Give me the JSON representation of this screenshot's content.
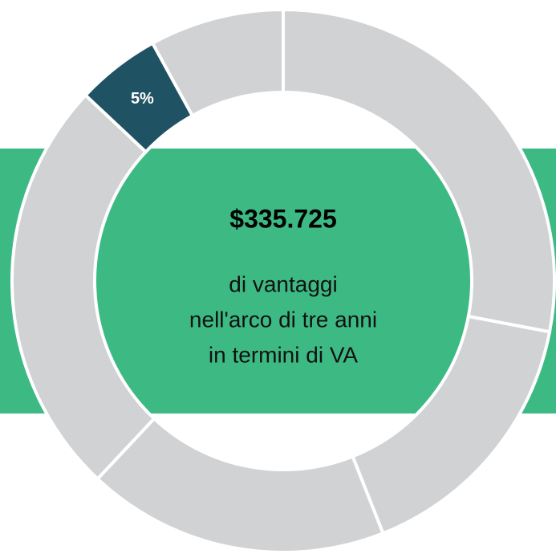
{
  "chart_data": {
    "type": "pie",
    "values": [
      28,
      16,
      18,
      25,
      5,
      8
    ],
    "value_labels": [
      null,
      null,
      null,
      null,
      "5%",
      null
    ],
    "colors": [
      "#d1d2d4",
      "#d1d2d4",
      "#d1d2d4",
      "#d1d2d4",
      "#1f5263",
      "#d1d2d4"
    ],
    "center_title": "$335.725",
    "center_lines": [
      "di vantaggi",
      "nell'arco di tre anni",
      "in termini di VA"
    ]
  }
}
